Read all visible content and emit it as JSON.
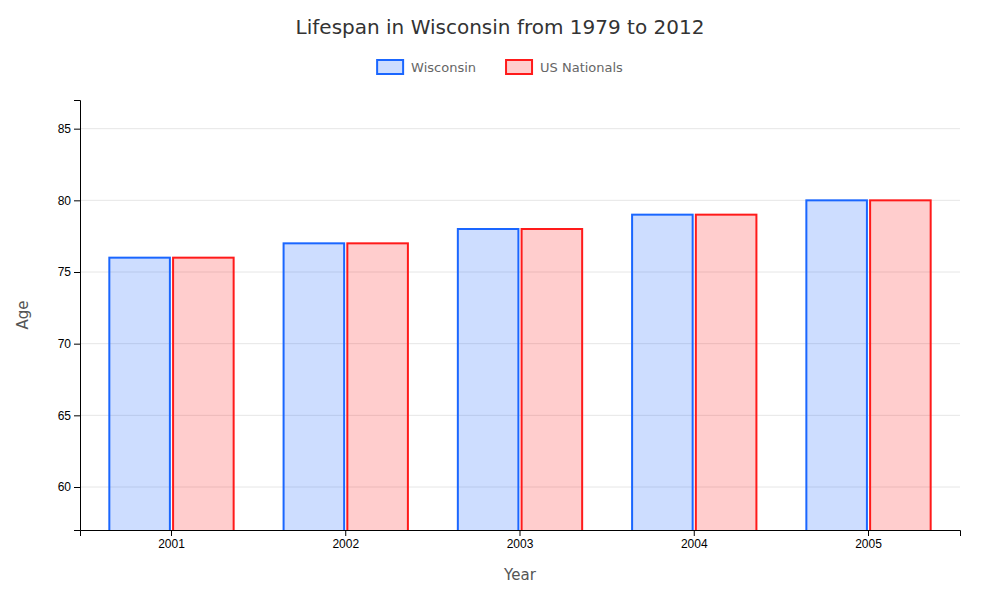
{
  "chart_data": {
    "type": "bar",
    "title": "Lifespan in Wisconsin from 1979 to 2012",
    "xlabel": "Year",
    "ylabel": "Age",
    "categories": [
      "2001",
      "2002",
      "2003",
      "2004",
      "2005"
    ],
    "series": [
      {
        "name": "Wisconsin",
        "color": "#1a66ff",
        "values": [
          76.0,
          77.0,
          78.0,
          79.0,
          80.0
        ]
      },
      {
        "name": "US Nationals",
        "color": "#ff1a1a",
        "values": [
          76.0,
          77.0,
          78.0,
          79.0,
          80.0
        ]
      }
    ],
    "ylim": [
      57,
      87
    ],
    "yticks": [
      60,
      65,
      70,
      75,
      80,
      85
    ],
    "grid": true,
    "legend": "top"
  }
}
